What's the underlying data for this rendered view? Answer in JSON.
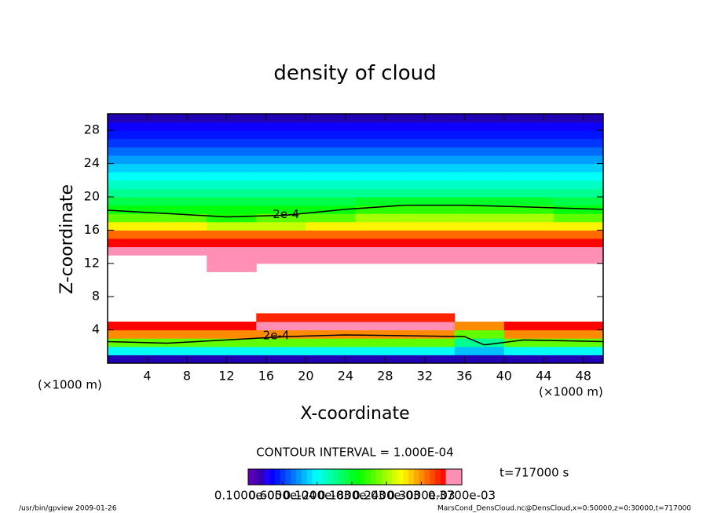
{
  "chart_data": {
    "type": "heatmap",
    "title": "density of cloud",
    "x_label": "X-coordinate",
    "y_label": "Z-coordinate",
    "x_unit": "(×1000 m)",
    "y_unit": "(×1000 m)",
    "xlim": [
      0,
      50
    ],
    "ylim": [
      0,
      30
    ],
    "xticks": [
      4,
      8,
      12,
      16,
      20,
      24,
      28,
      32,
      36,
      40,
      44,
      48
    ],
    "yticks": [
      4,
      8,
      12,
      16,
      20,
      24,
      28
    ],
    "x": [
      2.5,
      7.5,
      12.5,
      17.5,
      22.5,
      27.5,
      32.5,
      37.5,
      42.5,
      47.5
    ],
    "z": [
      0.5,
      1.5,
      2.5,
      3.5,
      4.5,
      5.5,
      6.5,
      7.5,
      8.5,
      9.5,
      10.5,
      11.5,
      12.5,
      13.5,
      14.5,
      15.5,
      16.5,
      17.5,
      18.5,
      19.5,
      20.5,
      21.5,
      22.5,
      23.5,
      24.5,
      25.5,
      26.5,
      27.5,
      28.5,
      29.5
    ],
    "values": [
      [
        3e-05,
        3e-05,
        3e-05,
        3e-05,
        3e-05,
        3e-05,
        3e-05,
        3e-05,
        3e-05,
        3e-05
      ],
      [
        0.00012,
        0.00012,
        0.00012,
        0.00012,
        0.00012,
        0.00012,
        0.00012,
        0.0001,
        0.00012,
        0.00012
      ],
      [
        0.00022,
        0.00022,
        0.00022,
        0.00022,
        0.00022,
        0.00022,
        0.00022,
        0.00015,
        0.00022,
        0.00022
      ],
      [
        0.0003,
        0.0003,
        0.0003,
        0.0003,
        0.0003,
        0.0003,
        0.0003,
        0.00022,
        0.0003,
        0.0003
      ],
      [
        0.00034,
        0.00034,
        0.00034,
        0.00035,
        0.00035,
        0.00035,
        0.00035,
        0.0003,
        0.00034,
        0.00034
      ],
      [
        null,
        null,
        null,
        0.00033,
        0.00033,
        0.00033,
        0.00033,
        null,
        null,
        null
      ],
      [
        null,
        null,
        null,
        null,
        null,
        null,
        null,
        null,
        null,
        null
      ],
      [
        null,
        null,
        null,
        null,
        null,
        null,
        null,
        null,
        null,
        null
      ],
      [
        null,
        null,
        null,
        null,
        null,
        null,
        null,
        null,
        null,
        null
      ],
      [
        null,
        null,
        null,
        null,
        null,
        null,
        null,
        null,
        null,
        null
      ],
      [
        null,
        null,
        null,
        null,
        null,
        null,
        null,
        null,
        null,
        null
      ],
      [
        null,
        null,
        0.00036,
        null,
        null,
        null,
        null,
        null,
        null,
        null
      ],
      [
        null,
        null,
        0.00036,
        0.00036,
        0.00036,
        0.00036,
        0.00036,
        0.00036,
        0.00036,
        0.00036
      ],
      [
        0.00036,
        0.00036,
        0.00036,
        0.00036,
        0.00036,
        0.00036,
        0.00036,
        0.00036,
        0.00036,
        0.00036
      ],
      [
        0.00034,
        0.00034,
        0.00034,
        0.00034,
        0.00034,
        0.00034,
        0.00034,
        0.00034,
        0.00034,
        0.00034
      ],
      [
        0.00031,
        0.00031,
        0.00031,
        0.00031,
        0.00031,
        0.00031,
        0.00031,
        0.00031,
        0.00031,
        0.00031
      ],
      [
        0.00027,
        0.00027,
        0.00025,
        0.00025,
        0.00027,
        0.00027,
        0.00027,
        0.00027,
        0.00027,
        0.00027
      ],
      [
        0.00022,
        0.00022,
        0.0002,
        0.00022,
        0.00022,
        0.00024,
        0.00024,
        0.00024,
        0.00024,
        0.00022
      ],
      [
        0.00019,
        0.00019,
        0.00019,
        0.00019,
        0.00019,
        0.000205,
        0.000205,
        0.000205,
        0.000205,
        0.00019
      ],
      [
        0.00017,
        0.00017,
        0.00017,
        0.00017,
        0.00017,
        0.00018,
        0.00018,
        0.00018,
        0.00018,
        0.00017
      ],
      [
        0.00015,
        0.00015,
        0.00015,
        0.00015,
        0.00015,
        0.00015,
        0.00015,
        0.00015,
        0.00015,
        0.00015
      ],
      [
        0.000135,
        0.000135,
        0.000135,
        0.000135,
        0.000135,
        0.000135,
        0.000135,
        0.000135,
        0.000135,
        0.000135
      ],
      [
        0.00012,
        0.00012,
        0.00012,
        0.00012,
        0.00012,
        0.00012,
        0.00012,
        0.00012,
        0.00012,
        0.00012
      ],
      [
        0.000105,
        0.000105,
        0.000105,
        0.000105,
        0.000105,
        0.000105,
        0.000105,
        0.000105,
        0.000105,
        0.000105
      ],
      [
        9e-05,
        9e-05,
        9e-05,
        9e-05,
        9e-05,
        9e-05,
        9e-05,
        9e-05,
        9e-05,
        9e-05
      ],
      [
        7.5e-05,
        7.5e-05,
        7.5e-05,
        7.5e-05,
        7.5e-05,
        7.5e-05,
        7.5e-05,
        7.5e-05,
        7.5e-05,
        7.5e-05
      ],
      [
        6e-05,
        6e-05,
        6e-05,
        6e-05,
        6e-05,
        6e-05,
        6e-05,
        6e-05,
        6e-05,
        6e-05
      ],
      [
        5e-05,
        5e-05,
        5e-05,
        5e-05,
        5e-05,
        5e-05,
        5e-05,
        5e-05,
        5e-05,
        5e-05
      ],
      [
        4e-05,
        4e-05,
        4e-05,
        4e-05,
        4e-05,
        4e-05,
        4e-05,
        4e-05,
        4e-05,
        4e-05
      ],
      [
        3e-05,
        3e-05,
        3e-05,
        3e-05,
        3e-05,
        3e-05,
        3e-05,
        3e-05,
        3e-05,
        3e-05
      ]
    ],
    "contours": [
      {
        "label": "2e-4",
        "label_x": 18,
        "label_z": 17.9,
        "x": [
          0,
          6,
          12,
          18,
          24,
          30,
          36,
          42,
          50
        ],
        "z": [
          18.4,
          18,
          17.6,
          17.8,
          18.5,
          19,
          19,
          18.8,
          18.5
        ]
      },
      {
        "label": "2e-4",
        "label_x": 17,
        "label_z": 3.3,
        "x": [
          0,
          6,
          12,
          18,
          24,
          30,
          36,
          38,
          42,
          50
        ],
        "z": [
          2.6,
          2.4,
          2.8,
          3.2,
          3.4,
          3.3,
          3.2,
          2.2,
          2.8,
          2.6
        ]
      }
    ],
    "contour_interval": "CONTOUR INTERVAL = 1.000E-04",
    "time_label": "t=717000 s",
    "colorbar_ticks": [
      {
        "value": 1e-06,
        "label": "0.1000e-05"
      },
      {
        "value": 6e-05,
        "label": "0.6000e-04"
      },
      {
        "value": 0.00012,
        "label": "0.1200e-03"
      },
      {
        "value": 0.00018,
        "label": "0.1800e-03"
      },
      {
        "value": 0.00024,
        "label": "0.2400e-03"
      },
      {
        "value": 0.0003,
        "label": "0.3000e-03"
      },
      {
        "value": 0.00037,
        "label": "0.3700e-03"
      }
    ],
    "footer_left": "/usr/bin/gpview  2009-01-26",
    "footer_right": "MarsCond_DensCloud.nc@DensCloud,x=0:50000,z=0:30000,t=717000"
  }
}
